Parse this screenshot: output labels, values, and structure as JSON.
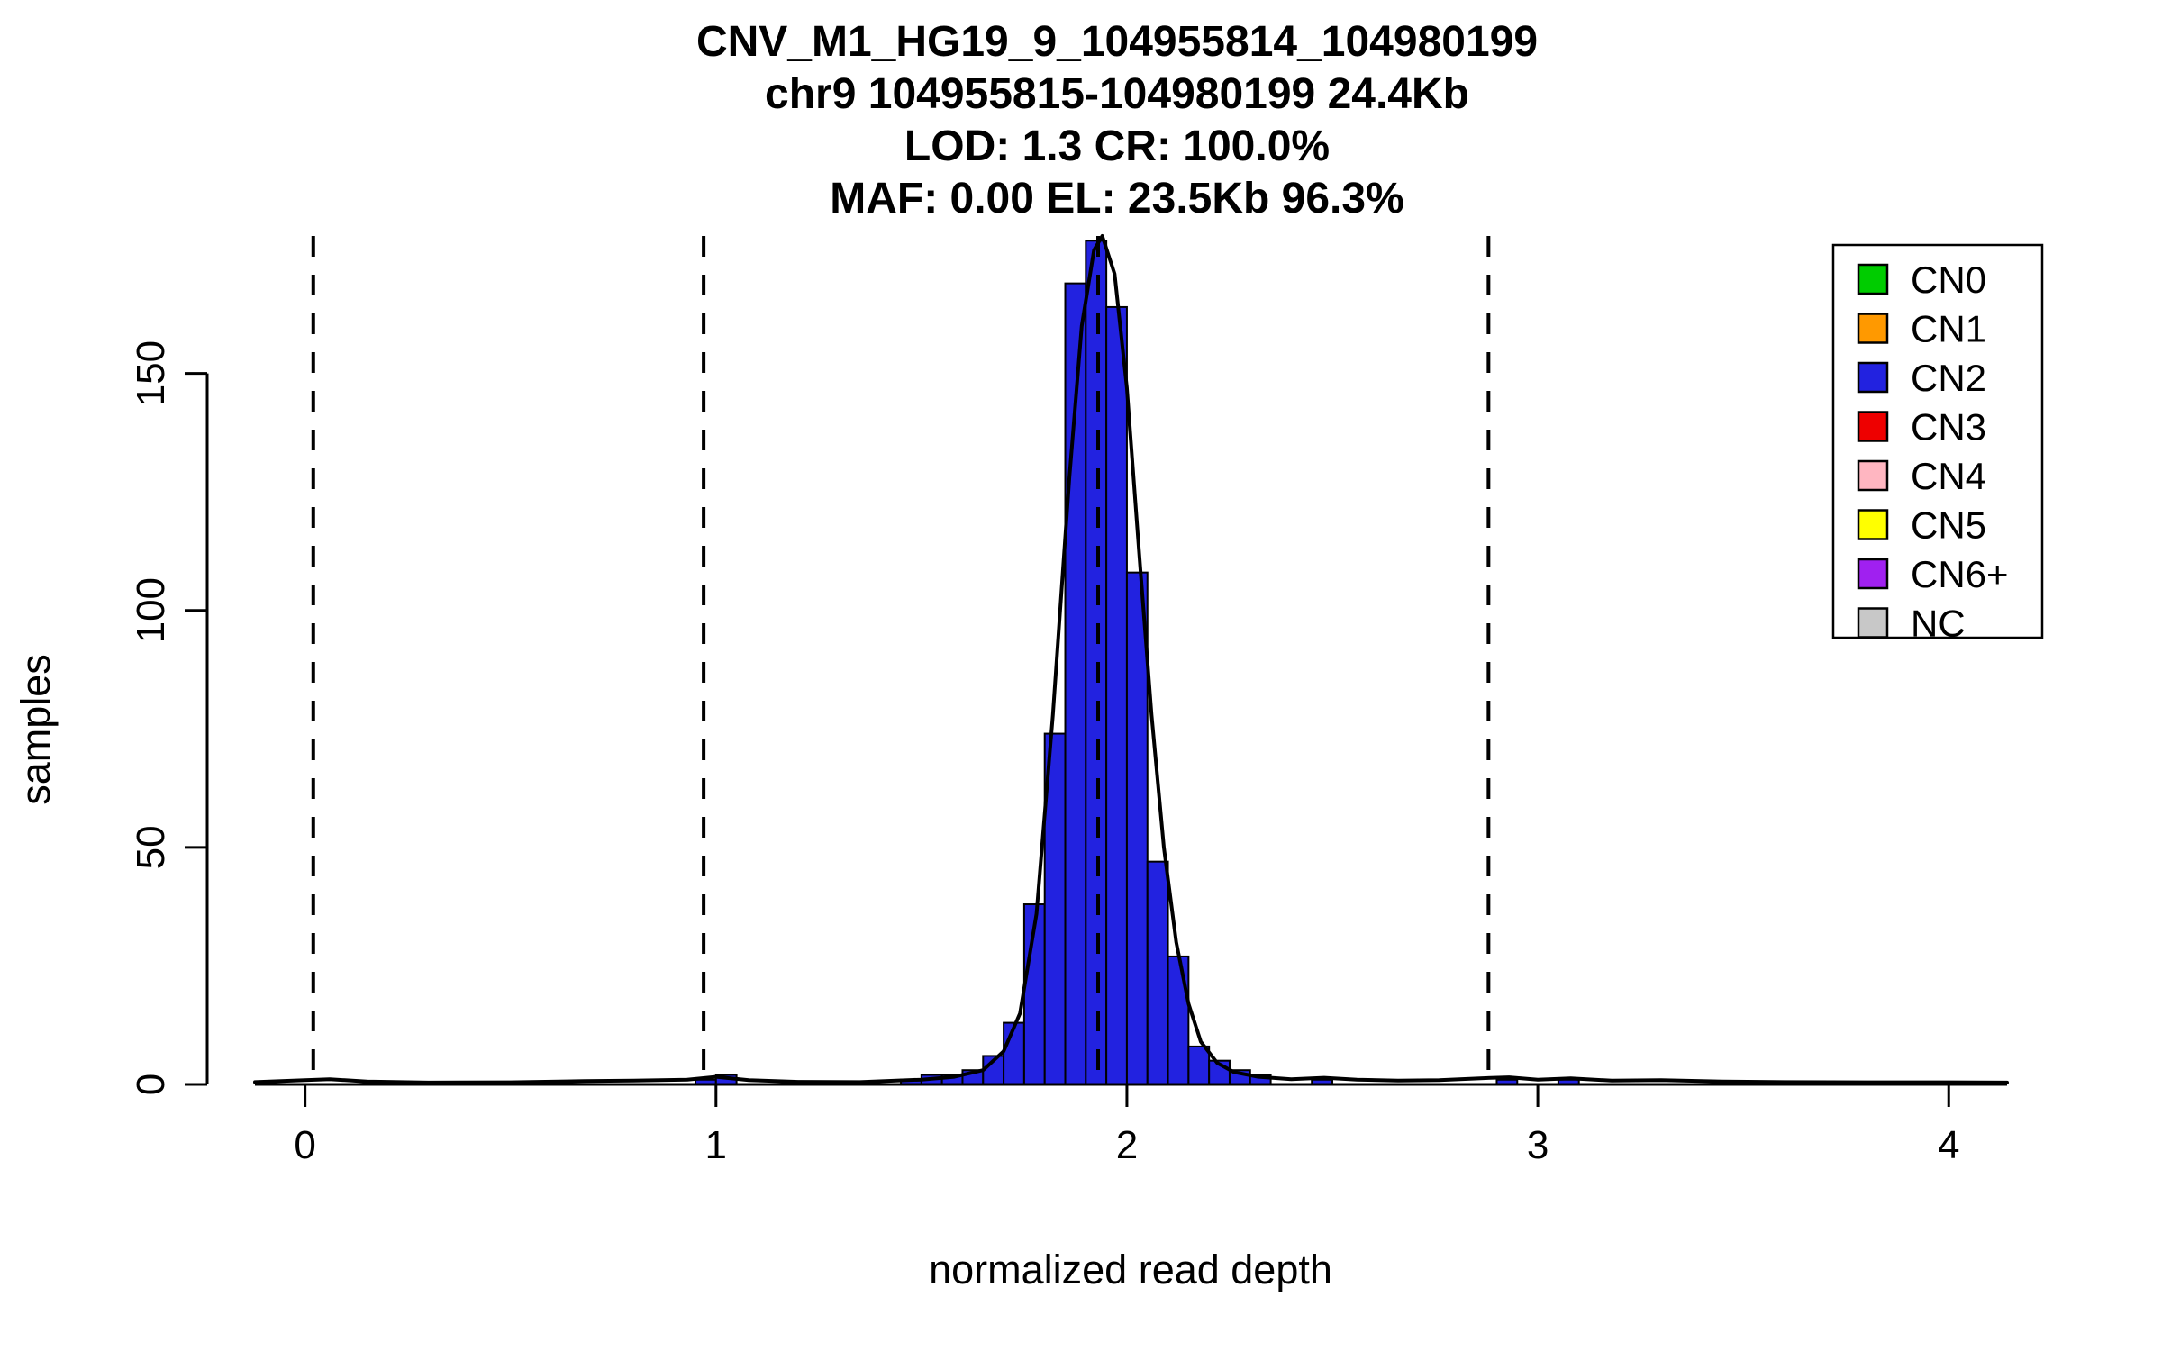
{
  "header": {
    "title_lines": [
      "CNV_M1_HG19_9_104955814_104980199",
      "chr9 104955815-104980199 24.4Kb",
      "LOD: 1.3 CR: 100.0%",
      "MAF: 0.00 EL: 23.5Kb 96.3%"
    ]
  },
  "chart_data": {
    "type": "bar",
    "subtype": "histogram-with-density",
    "title": "CNV_M1_HG19_9_104955814_104980199 chr9 104955815-104980199 24.4Kb LOD: 1.3 CR: 100.0% MAF: 0.00 EL: 23.5Kb 96.3%",
    "xlabel": "normalized read depth",
    "ylabel": "samples",
    "xlim": [
      -0.122,
      4.142
    ],
    "ylim": [
      0,
      179
    ],
    "xticks": [
      0,
      1,
      2,
      3,
      4
    ],
    "yticks": [
      0,
      50,
      100,
      150
    ],
    "grid": false,
    "legend_position": "top-right",
    "dashed_guides_x": [
      0.02,
      0.97,
      1.93,
      2.88
    ],
    "bin_width": 0.05,
    "bars": [
      [
        0.95,
        1
      ],
      [
        1.0,
        2
      ],
      [
        1.45,
        1
      ],
      [
        1.5,
        2
      ],
      [
        1.55,
        2
      ],
      [
        1.6,
        3
      ],
      [
        1.65,
        6
      ],
      [
        1.7,
        13
      ],
      [
        1.75,
        38
      ],
      [
        1.8,
        74
      ],
      [
        1.85,
        169
      ],
      [
        1.9,
        178
      ],
      [
        1.95,
        164
      ],
      [
        2.0,
        108
      ],
      [
        2.05,
        47
      ],
      [
        2.1,
        27
      ],
      [
        2.15,
        8
      ],
      [
        2.2,
        5
      ],
      [
        2.25,
        3
      ],
      [
        2.3,
        2
      ],
      [
        2.45,
        1
      ],
      [
        2.9,
        1
      ],
      [
        3.05,
        1
      ]
    ],
    "density_curve": [
      [
        -0.122,
        0.5
      ],
      [
        0.0,
        0.9
      ],
      [
        0.06,
        1.1
      ],
      [
        0.15,
        0.6
      ],
      [
        0.3,
        0.4
      ],
      [
        0.5,
        0.45
      ],
      [
        0.68,
        0.7
      ],
      [
        0.8,
        0.8
      ],
      [
        0.93,
        1.0
      ],
      [
        1.0,
        1.6
      ],
      [
        1.08,
        0.9
      ],
      [
        1.2,
        0.55
      ],
      [
        1.35,
        0.5
      ],
      [
        1.5,
        1.0
      ],
      [
        1.58,
        1.6
      ],
      [
        1.65,
        3
      ],
      [
        1.7,
        7
      ],
      [
        1.74,
        15
      ],
      [
        1.78,
        36
      ],
      [
        1.82,
        78
      ],
      [
        1.86,
        128
      ],
      [
        1.89,
        160
      ],
      [
        1.92,
        176
      ],
      [
        1.94,
        179
      ],
      [
        1.97,
        171
      ],
      [
        2.0,
        147
      ],
      [
        2.03,
        112
      ],
      [
        2.06,
        78
      ],
      [
        2.09,
        50
      ],
      [
        2.12,
        30
      ],
      [
        2.15,
        17
      ],
      [
        2.18,
        9
      ],
      [
        2.22,
        4.5
      ],
      [
        2.26,
        2.6
      ],
      [
        2.32,
        1.6
      ],
      [
        2.4,
        1.1
      ],
      [
        2.48,
        1.4
      ],
      [
        2.56,
        1.0
      ],
      [
        2.66,
        0.8
      ],
      [
        2.76,
        0.9
      ],
      [
        2.86,
        1.3
      ],
      [
        2.93,
        1.5
      ],
      [
        3.0,
        1.0
      ],
      [
        3.08,
        1.3
      ],
      [
        3.18,
        0.8
      ],
      [
        3.3,
        0.9
      ],
      [
        3.45,
        0.6
      ],
      [
        3.6,
        0.5
      ],
      [
        3.8,
        0.45
      ],
      [
        4.0,
        0.45
      ],
      [
        4.142,
        0.4
      ]
    ],
    "legend": {
      "entries": [
        {
          "label": "CN0",
          "color": "#00cc00"
        },
        {
          "label": "CN1",
          "color": "#ff9900"
        },
        {
          "label": "CN2",
          "color": "#2222e0"
        },
        {
          "label": "CN3",
          "color": "#ee0000"
        },
        {
          "label": "CN4",
          "color": "#ffb6c1"
        },
        {
          "label": "CN5",
          "color": "#ffff00"
        },
        {
          "label": "CN6+",
          "color": "#a020f0"
        },
        {
          "label": "NC",
          "color": "#c8c8c8"
        }
      ]
    },
    "colors": {
      "bar_fill": "#2222e0",
      "bar_stroke": "#000000",
      "curve": "#000000",
      "guide": "#000000",
      "axis": "#000000"
    }
  }
}
